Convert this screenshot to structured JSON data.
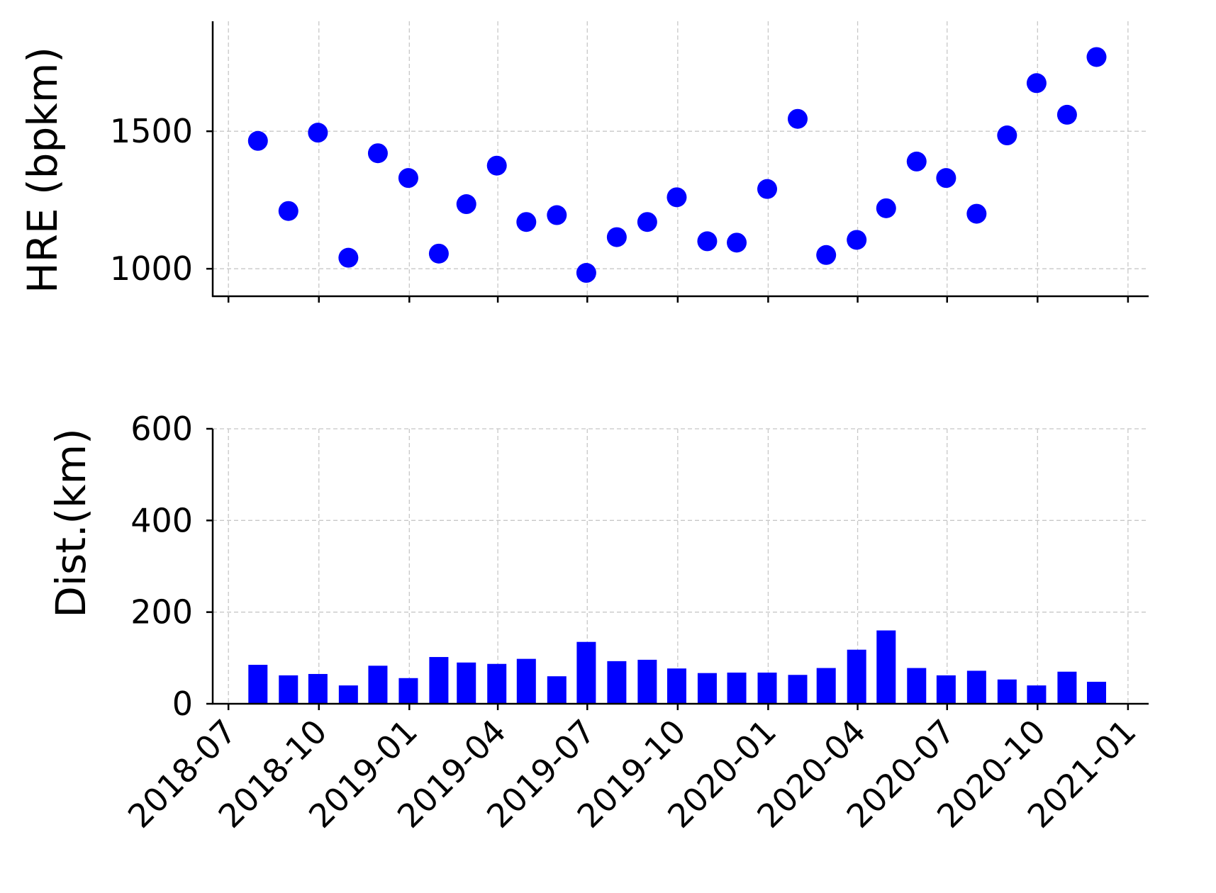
{
  "colors": {
    "marker": "#0000ff",
    "bar": "#0000ff",
    "grid": "#c8c8c8",
    "axis": "#000000"
  },
  "chart_data": [
    {
      "type": "scatter",
      "panel": "top",
      "ylabel": "HRE (bpkm)",
      "xlabel": "",
      "ylim": [
        900,
        1900
      ],
      "yticks": [
        1000,
        1500
      ],
      "ytick_labels": [
        "1000",
        "1500"
      ],
      "xticks": [
        "2018-07-01",
        "2018-10-01",
        "2019-01-01",
        "2019-04-01",
        "2019-07-01",
        "2019-10-01",
        "2020-01-01",
        "2020-04-01",
        "2020-07-01",
        "2020-10-01",
        "2021-01-01"
      ],
      "xlim": [
        "2018-06-15",
        "2021-01-22"
      ],
      "grid": true,
      "x": [
        "2018-07-31",
        "2018-08-31",
        "2018-09-30",
        "2018-10-31",
        "2018-11-30",
        "2018-12-31",
        "2019-01-31",
        "2019-02-28",
        "2019-03-31",
        "2019-04-30",
        "2019-05-31",
        "2019-06-30",
        "2019-07-31",
        "2019-08-31",
        "2019-09-30",
        "2019-10-31",
        "2019-11-30",
        "2019-12-31",
        "2020-01-31",
        "2020-02-29",
        "2020-03-31",
        "2020-04-30",
        "2020-05-31",
        "2020-06-30",
        "2020-07-31",
        "2020-08-31",
        "2020-09-30",
        "2020-10-31",
        "2020-11-30"
      ],
      "y": [
        1465,
        1210,
        1495,
        1040,
        1420,
        1330,
        1055,
        1235,
        1375,
        1170,
        1195,
        985,
        1115,
        1170,
        1260,
        1100,
        1095,
        1290,
        1545,
        1050,
        1105,
        1220,
        1390,
        1330,
        1200,
        1485,
        1675,
        1560,
        1770
      ]
    },
    {
      "type": "bar",
      "panel": "bottom",
      "ylabel": "Dist.(km)",
      "xlabel": "",
      "ylim": [
        0,
        600
      ],
      "yticks": [
        0,
        200,
        400,
        600
      ],
      "ytick_labels": [
        "0",
        "200",
        "400",
        "600"
      ],
      "xticks": [
        "2018-07-01",
        "2018-10-01",
        "2019-01-01",
        "2019-04-01",
        "2019-07-01",
        "2019-10-01",
        "2020-01-01",
        "2020-04-01",
        "2020-07-01",
        "2020-10-01",
        "2021-01-01"
      ],
      "xtick_labels": [
        "2018-07",
        "2018-10",
        "2019-01",
        "2019-04",
        "2019-07",
        "2019-10",
        "2020-01",
        "2020-04",
        "2020-07",
        "2020-10",
        "2021-01"
      ],
      "xlim": [
        "2018-06-15",
        "2021-01-22"
      ],
      "grid": true,
      "x": [
        "2018-07-31",
        "2018-08-31",
        "2018-09-30",
        "2018-10-31",
        "2018-11-30",
        "2018-12-31",
        "2019-01-31",
        "2019-02-28",
        "2019-03-31",
        "2019-04-30",
        "2019-05-31",
        "2019-06-30",
        "2019-07-31",
        "2019-08-31",
        "2019-09-30",
        "2019-10-31",
        "2019-11-30",
        "2019-12-31",
        "2020-01-31",
        "2020-02-29",
        "2020-03-31",
        "2020-04-30",
        "2020-05-31",
        "2020-06-30",
        "2020-07-31",
        "2020-08-31",
        "2020-09-30",
        "2020-10-31",
        "2020-11-30"
      ],
      "values": [
        85,
        62,
        65,
        40,
        83,
        56,
        102,
        90,
        87,
        98,
        60,
        135,
        93,
        96,
        77,
        67,
        68,
        68,
        63,
        78,
        118,
        160,
        78,
        62,
        72,
        53,
        40,
        70,
        48
      ]
    }
  ]
}
